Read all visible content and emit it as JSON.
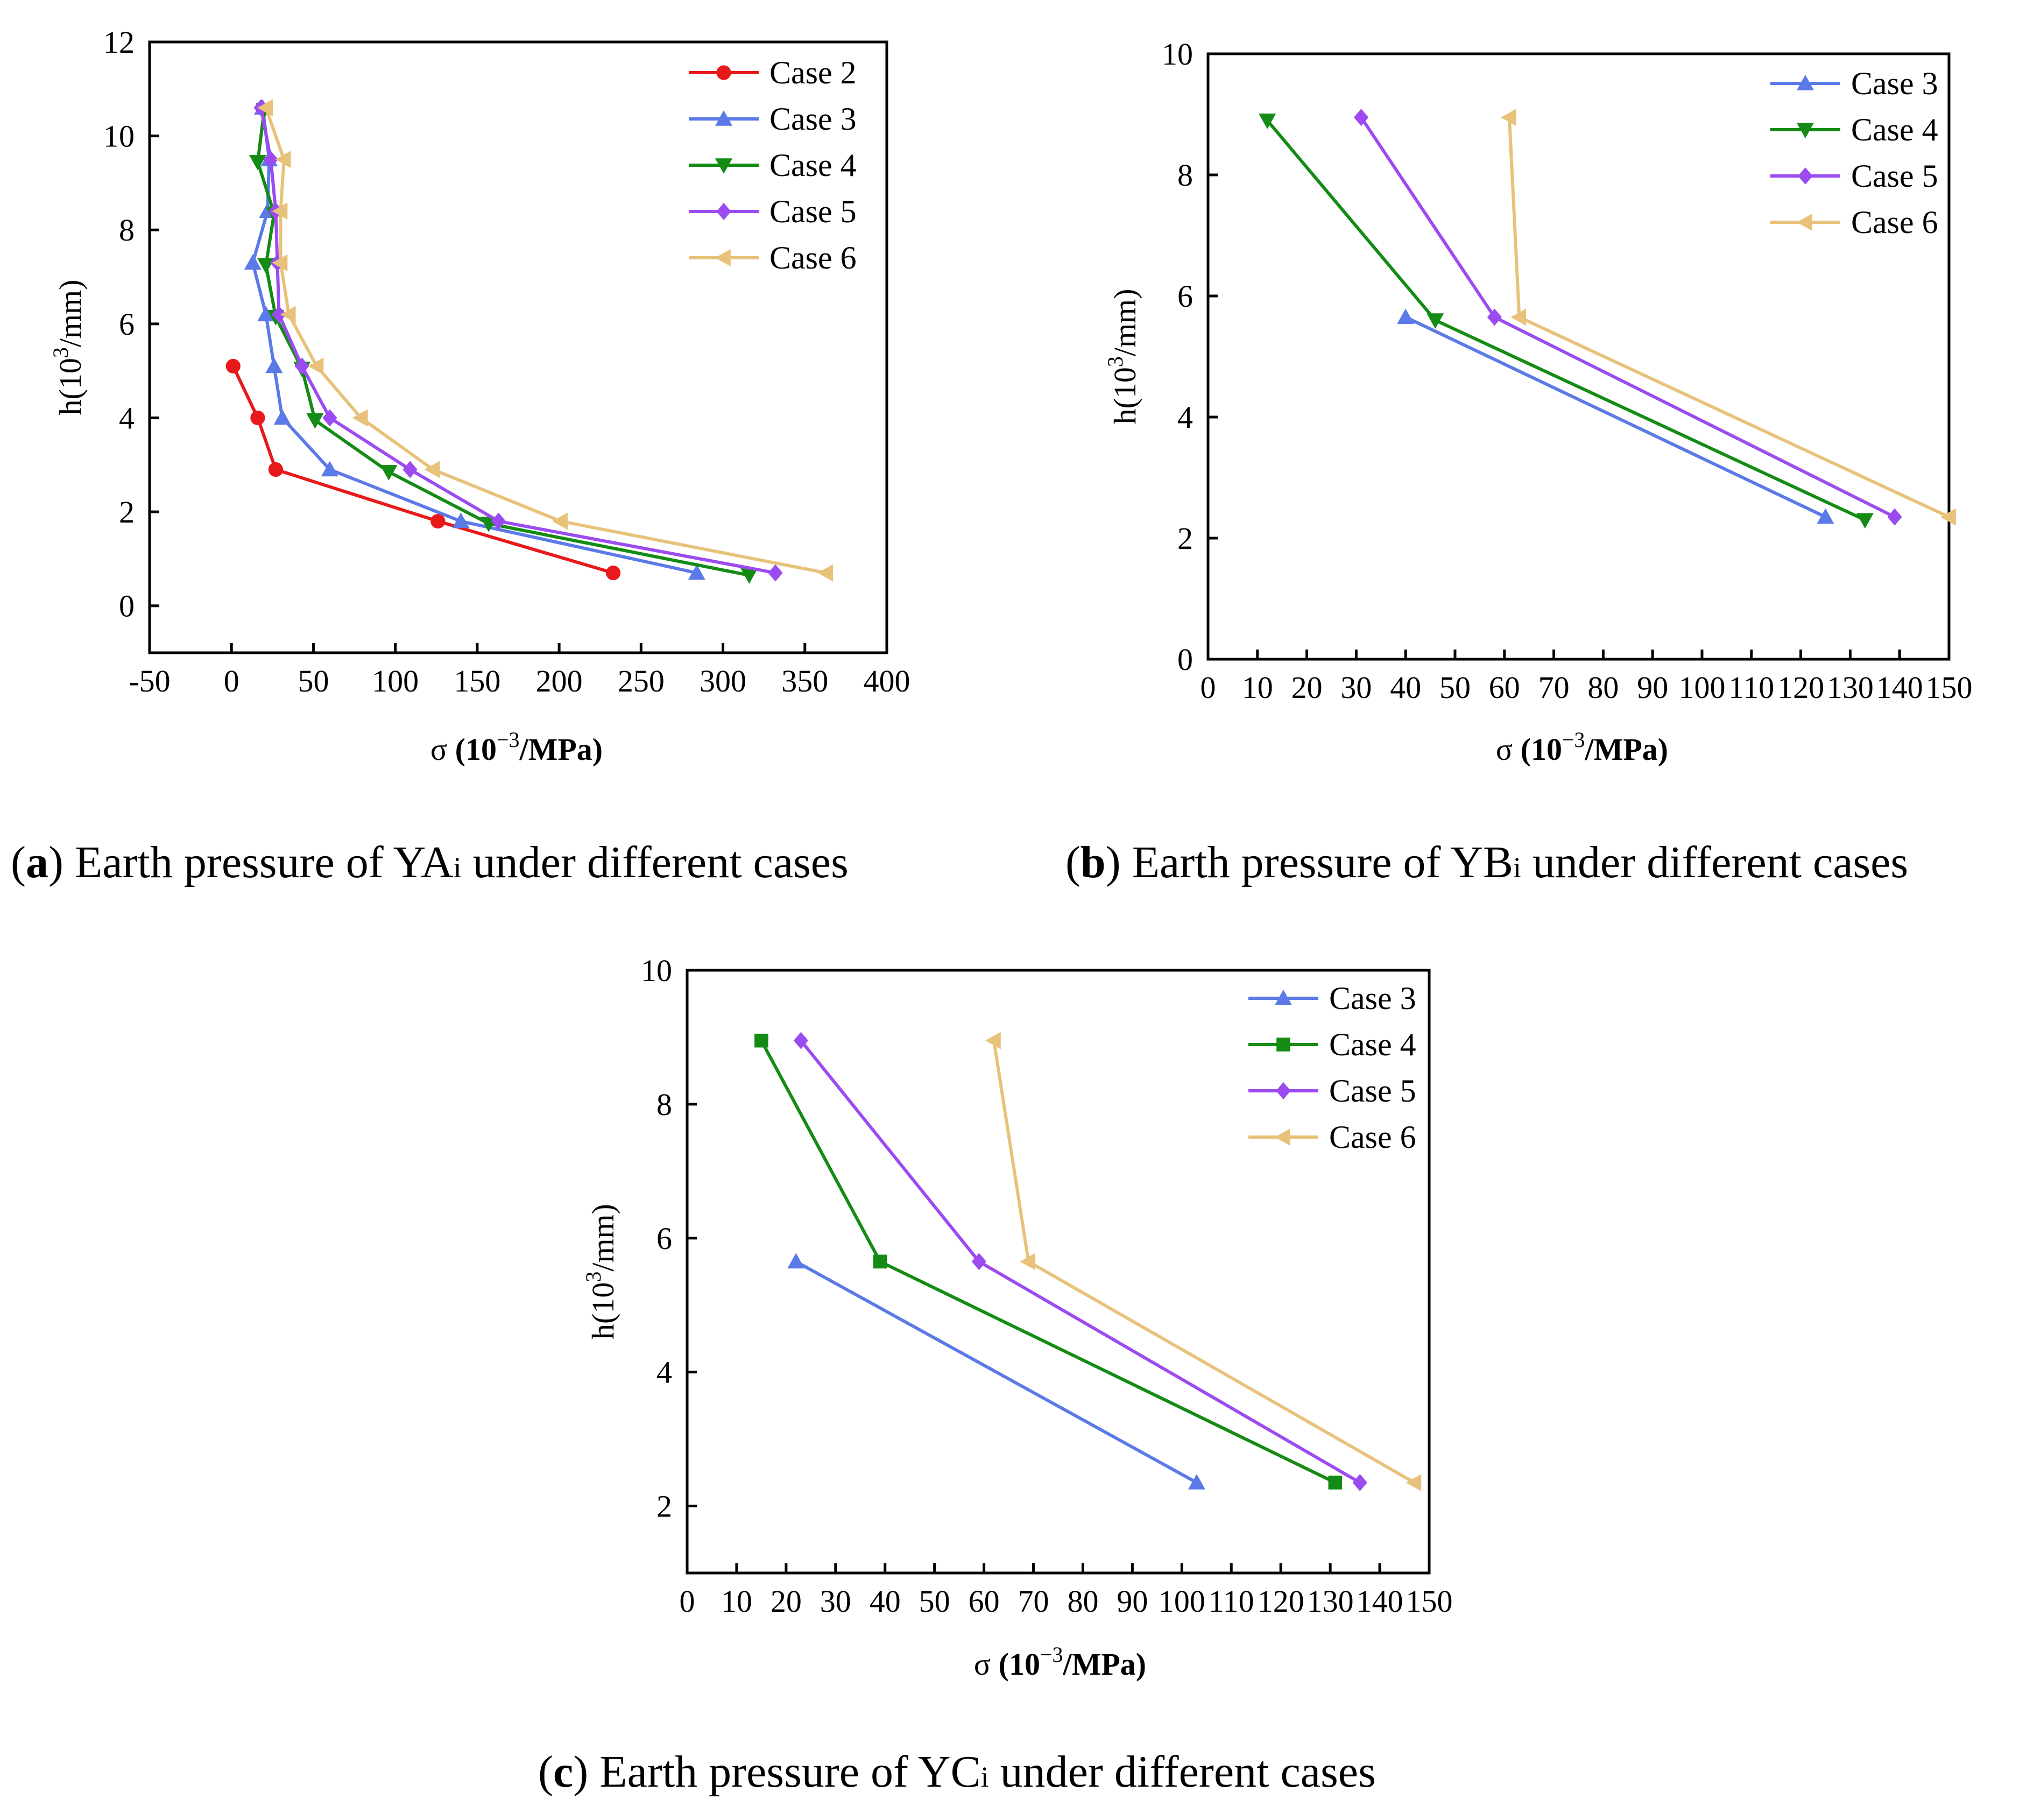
{
  "chart_data": [
    {
      "panel": "a",
      "type": "line",
      "title": "",
      "xlabel": {
        "prefix": "σ",
        "unit_pre": "(10",
        "unit_exp": "−3",
        "unit_post": "/MPa)"
      },
      "ylabel": {
        "pre": "h(10",
        "exp": "3",
        "post": "/mm)"
      },
      "xlim": [
        -50,
        400
      ],
      "ylim": [
        -1,
        12
      ],
      "xticks": [
        -50,
        0,
        50,
        100,
        150,
        200,
        250,
        300,
        350,
        400
      ],
      "yticks": [
        0,
        2,
        4,
        6,
        8,
        10,
        12
      ],
      "xtick_labels": [
        "-50",
        "0",
        "50",
        "100",
        "150",
        "200",
        "250",
        "300",
        "350",
        "400"
      ],
      "ytick_labels": [
        "0",
        "2",
        "4",
        "6",
        "8",
        "10",
        "12"
      ],
      "legend_position": "top-right",
      "series": [
        {
          "name": "Case 2",
          "color": "#e8191b",
          "marker": "circle",
          "points": [
            [
              233,
              0.7
            ],
            [
              126,
              1.8
            ],
            [
              27,
              2.9
            ],
            [
              16,
              4.0
            ],
            [
              1,
              5.1
            ]
          ]
        },
        {
          "name": "Case 3",
          "color": "#5b7ae8",
          "marker": "triangle-up",
          "points": [
            [
              284,
              0.7
            ],
            [
              140,
              1.8
            ],
            [
              60,
              2.9
            ],
            [
              31,
              4.0
            ],
            [
              26,
              5.1
            ],
            [
              21,
              6.2
            ],
            [
              13,
              7.3
            ],
            [
              22,
              8.4
            ],
            [
              23,
              9.5
            ],
            [
              19,
              10.6
            ]
          ]
        },
        {
          "name": "Case 4",
          "color": "#148b14",
          "marker": "triangle-down",
          "points": [
            [
              316,
              0.65
            ],
            [
              157,
              1.75
            ],
            [
              96,
              2.85
            ],
            [
              51,
              3.95
            ],
            [
              43,
              5.05
            ],
            [
              27,
              6.15
            ],
            [
              21,
              7.25
            ],
            [
              26,
              8.35
            ],
            [
              16,
              9.45
            ],
            [
              20,
              10.55
            ]
          ]
        },
        {
          "name": "Case 5",
          "color": "#9b4bf0",
          "marker": "diamond",
          "points": [
            [
              332,
              0.7
            ],
            [
              163,
              1.8
            ],
            [
              109,
              2.9
            ],
            [
              60,
              4.0
            ],
            [
              43,
              5.1
            ],
            [
              29,
              6.2
            ],
            [
              28,
              7.3
            ],
            [
              27,
              8.4
            ],
            [
              24,
              9.5
            ],
            [
              18,
              10.6
            ]
          ]
        },
        {
          "name": "Case 6",
          "color": "#e8c27a",
          "marker": "triangle-left",
          "points": [
            [
              363,
              0.7
            ],
            [
              201,
              1.8
            ],
            [
              123,
              2.9
            ],
            [
              79,
              4.0
            ],
            [
              52,
              5.1
            ],
            [
              35,
              6.2
            ],
            [
              30,
              7.3
            ],
            [
              30,
              8.4
            ],
            [
              32,
              9.5
            ],
            [
              21,
              10.6
            ]
          ]
        }
      ]
    },
    {
      "panel": "b",
      "type": "line",
      "title": "",
      "xlabel": {
        "prefix": "σ",
        "unit_pre": "(10",
        "unit_exp": "−3",
        "unit_post": "/MPa)"
      },
      "ylabel": {
        "pre": "h(10",
        "exp": "3",
        "post": "/mm)"
      },
      "xlim": [
        0,
        150
      ],
      "ylim": [
        0,
        10
      ],
      "xticks": [
        0,
        10,
        20,
        30,
        40,
        50,
        60,
        70,
        80,
        90,
        100,
        110,
        120,
        130,
        140,
        150
      ],
      "yticks": [
        0,
        2,
        4,
        6,
        8,
        10
      ],
      "xtick_labels": [
        "0",
        "10",
        "20",
        "30",
        "40",
        "50",
        "60",
        "70",
        "80",
        "90",
        "100",
        "110",
        "120",
        "130",
        "140",
        "150"
      ],
      "ytick_labels": [
        "0",
        "2",
        "4",
        "6",
        "8",
        "10"
      ],
      "legend_position": "top-right",
      "series": [
        {
          "name": "Case 3",
          "color": "#5b7ae8",
          "marker": "triangle-up",
          "points": [
            [
              125,
              2.35
            ],
            [
              40,
              5.65
            ]
          ]
        },
        {
          "name": "Case 4",
          "color": "#148b14",
          "marker": "triangle-down",
          "points": [
            [
              133,
              2.3
            ],
            [
              46,
              5.6
            ],
            [
              12,
              8.9
            ]
          ]
        },
        {
          "name": "Case 5",
          "color": "#9b4bf0",
          "marker": "diamond",
          "points": [
            [
              139,
              2.35
            ],
            [
              58,
              5.65
            ],
            [
              31,
              8.95
            ]
          ]
        },
        {
          "name": "Case 6",
          "color": "#e8c27a",
          "marker": "triangle-left",
          "points": [
            [
              150,
              2.35
            ],
            [
              63,
              5.65
            ],
            [
              61,
              8.95
            ]
          ]
        }
      ]
    },
    {
      "panel": "c",
      "type": "line",
      "title": "",
      "xlabel": {
        "prefix": "σ",
        "unit_pre": "(10",
        "unit_exp": "−3",
        "unit_post": "/MPa)"
      },
      "ylabel": {
        "pre": "h(10",
        "exp": "3",
        "post": "/mm)"
      },
      "xlim": [
        0,
        150
      ],
      "ylim": [
        1,
        10
      ],
      "xticks": [
        0,
        10,
        20,
        30,
        40,
        50,
        60,
        70,
        80,
        90,
        100,
        110,
        120,
        130,
        140,
        150
      ],
      "yticks": [
        2,
        4,
        6,
        8,
        10
      ],
      "xtick_labels": [
        "0",
        "10",
        "20",
        "30",
        "40",
        "50",
        "60",
        "70",
        "80",
        "90",
        "100",
        "110",
        "120",
        "130",
        "140",
        "150"
      ],
      "ytick_labels": [
        "2",
        "4",
        "6",
        "8",
        "10"
      ],
      "legend_position": "top-right",
      "series": [
        {
          "name": "Case 3",
          "color": "#5b7ae8",
          "marker": "triangle-up",
          "points": [
            [
              103,
              2.35
            ],
            [
              22,
              5.65
            ]
          ]
        },
        {
          "name": "Case 4",
          "color": "#148b14",
          "marker": "square",
          "points": [
            [
              131,
              2.35
            ],
            [
              39,
              5.65
            ],
            [
              15,
              8.95
            ]
          ]
        },
        {
          "name": "Case 5",
          "color": "#9b4bf0",
          "marker": "diamond",
          "points": [
            [
              136,
              2.35
            ],
            [
              59,
              5.65
            ],
            [
              23,
              8.95
            ]
          ]
        },
        {
          "name": "Case 6",
          "color": "#e8c27a",
          "marker": "triangle-left",
          "points": [
            [
              147,
              2.35
            ],
            [
              69,
              5.65
            ],
            [
              62,
              8.95
            ]
          ]
        }
      ]
    }
  ],
  "captions": [
    {
      "panel": "a",
      "label": "a",
      "open": "(",
      "close": ")",
      "text_pre": " Earth pressure of YA",
      "sub": "i",
      "text_post": " under different cases"
    },
    {
      "panel": "b",
      "label": "b",
      "open": "(",
      "close": ")",
      "text_pre": " Earth pressure of YB",
      "sub": "i",
      "text_post": " under different cases"
    },
    {
      "panel": "c",
      "label": "c",
      "open": "(",
      "close": ")",
      "text_pre": " Earth pressure of YC",
      "sub": "i",
      "text_post": " under different cases"
    }
  ]
}
